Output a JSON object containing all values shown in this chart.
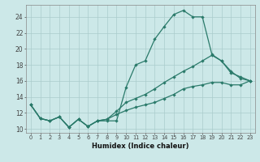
{
  "xlabel": "Humidex (Indice chaleur)",
  "xlim": [
    -0.5,
    23.5
  ],
  "ylim": [
    9.5,
    25.5
  ],
  "yticks": [
    10,
    12,
    14,
    16,
    18,
    20,
    22,
    24
  ],
  "xticks": [
    0,
    1,
    2,
    3,
    4,
    5,
    6,
    7,
    8,
    9,
    10,
    11,
    12,
    13,
    14,
    15,
    16,
    17,
    18,
    19,
    20,
    21,
    22,
    23
  ],
  "bg_color": "#cce8e8",
  "grid_color": "#aacccc",
  "line_color": "#2a7a6a",
  "line1_y": [
    13.0,
    11.3,
    11.0,
    11.5,
    10.2,
    11.2,
    10.3,
    11.0,
    11.0,
    11.0,
    15.2,
    18.0,
    18.5,
    21.2,
    22.8,
    24.3,
    24.8,
    24.0,
    24.0,
    19.3,
    18.5,
    17.2,
    16.3,
    16.0
  ],
  "line2_y": [
    13.0,
    11.3,
    11.0,
    11.5,
    10.2,
    11.2,
    10.3,
    11.0,
    11.2,
    12.2,
    13.3,
    13.8,
    14.3,
    15.0,
    15.8,
    16.5,
    17.2,
    17.8,
    18.5,
    19.2,
    18.5,
    17.0,
    16.5,
    16.0
  ],
  "line3_y": [
    13.0,
    11.3,
    11.0,
    11.5,
    10.2,
    11.2,
    10.3,
    11.0,
    11.2,
    11.8,
    12.3,
    12.7,
    13.0,
    13.3,
    13.8,
    14.3,
    15.0,
    15.3,
    15.5,
    15.8,
    15.8,
    15.5,
    15.5,
    16.0
  ]
}
